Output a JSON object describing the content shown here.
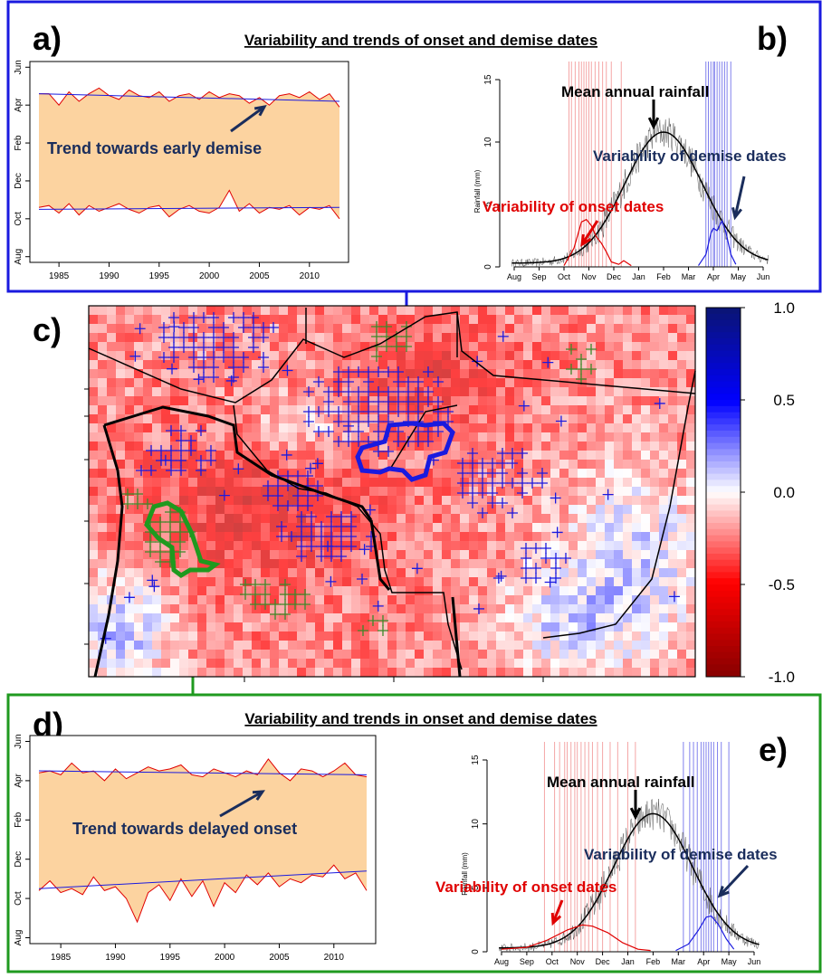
{
  "panels": {
    "a": "a)",
    "b": "b)",
    "c": "c)",
    "d": "d)",
    "e": "e)"
  },
  "top_title": "Variability and trends of onset and demise dates",
  "bottom_title": "Variability and trends in onset and demise dates",
  "annotations": {
    "trend_early_demise": "Trend towards early demise",
    "trend_delayed_onset": "Trend towards delayed onset",
    "mean_annual_rainfall": "Mean annual rainfall",
    "variability_demise": "Variability of demise dates",
    "variability_onset": "Variability of onset dates"
  },
  "colors": {
    "frame_top": "#1a1adf",
    "frame_bottom": "#1f9a1f",
    "band_fill": "#fcd3a0",
    "onset_red": "#e00000",
    "demise_blue": "#1a1adf",
    "text_navy": "#1a2d5c",
    "plus_blue": "#1a1adf",
    "plus_green": "#3a8a2a"
  },
  "chart_data": [
    {
      "id": "a",
      "type": "area",
      "x": [
        1983,
        1984,
        1985,
        1986,
        1987,
        1988,
        1989,
        1990,
        1991,
        1992,
        1993,
        1994,
        1995,
        1996,
        1997,
        1998,
        1999,
        2000,
        2001,
        2002,
        2003,
        2004,
        2005,
        2006,
        2007,
        2008,
        2009,
        2010,
        2011,
        2012,
        2013
      ],
      "x_ticks": [
        "1985",
        "1990",
        "1995",
        "2000",
        "2005",
        "2010"
      ],
      "y_ticks": [
        "Aug",
        "Oct",
        "Dec",
        "Feb",
        "Apr",
        "Jun"
      ],
      "series": [
        {
          "values": [
            8.6,
            8.6,
            8.0,
            8.7,
            8.2,
            8.6,
            8.9,
            8.5,
            8.3,
            8.8,
            8.5,
            8.4,
            8.7,
            8.2,
            8.5,
            8.6,
            8.3,
            8.7,
            8.4,
            8.6,
            8.5,
            8.1,
            8.4,
            8.0,
            8.5,
            8.6,
            8.4,
            8.7,
            8.3,
            8.6,
            7.9
          ]
        },
        {
          "values": [
            2.6,
            2.7,
            2.3,
            2.8,
            2.2,
            2.7,
            2.4,
            2.6,
            2.8,
            2.5,
            2.3,
            2.6,
            2.7,
            2.1,
            2.5,
            2.7,
            2.4,
            2.3,
            2.6,
            3.5,
            2.4,
            2.8,
            2.3,
            2.6,
            2.5,
            2.7,
            2.2,
            2.6,
            2.5,
            2.7,
            2.0
          ]
        }
      ],
      "trend_top": [
        8.6,
        8.2
      ],
      "trend_bottom": [
        2.5,
        2.6
      ]
    },
    {
      "id": "b",
      "type": "line",
      "x_ticks": [
        "Aug",
        "Sep",
        "Oct",
        "Nov",
        "Dec",
        "Jan",
        "Feb",
        "Mar",
        "Apr",
        "May",
        "Jun"
      ],
      "y_ticks": [
        "0",
        "5",
        "10",
        "15"
      ],
      "ylabel": "Rainfall (mm)",
      "ylim": [
        0,
        16
      ],
      "onset_dates": [
        2.2,
        2.3,
        2.45,
        2.6,
        2.7,
        2.8,
        2.9,
        3.0,
        3.1,
        3.25,
        3.4,
        3.55,
        3.7,
        3.9,
        4.3
      ],
      "demise_dates": [
        7.7,
        7.8,
        7.9,
        8.0,
        8.05,
        8.15,
        8.25,
        8.35,
        8.45,
        8.55,
        8.7
      ],
      "onset_density": [
        [
          2.0,
          0.1
        ],
        [
          2.4,
          1.5
        ],
        [
          2.7,
          3.6
        ],
        [
          2.9,
          3.8
        ],
        [
          3.1,
          3.3
        ],
        [
          3.3,
          2.4
        ],
        [
          3.5,
          1.9
        ],
        [
          3.7,
          1.2
        ],
        [
          3.9,
          0.4
        ],
        [
          4.2,
          0.2
        ],
        [
          4.4,
          0.5
        ],
        [
          4.7,
          0.1
        ]
      ],
      "demise_density": [
        [
          7.4,
          0.1
        ],
        [
          7.7,
          1.0
        ],
        [
          7.9,
          2.7
        ],
        [
          8.0,
          3.1
        ],
        [
          8.15,
          2.9
        ],
        [
          8.35,
          3.7
        ],
        [
          8.5,
          2.8
        ],
        [
          8.7,
          1.0
        ],
        [
          8.9,
          0.2
        ]
      ]
    },
    {
      "id": "c",
      "type": "heatmap",
      "colorbar_ticks": [
        "1.0",
        "0.5",
        "0.0",
        "-0.5",
        "-1.0"
      ],
      "vmin": -1.0,
      "vmax": 1.0
    },
    {
      "id": "d",
      "type": "area",
      "x": [
        1983,
        1984,
        1985,
        1986,
        1987,
        1988,
        1989,
        1990,
        1991,
        1992,
        1993,
        1994,
        1995,
        1996,
        1997,
        1998,
        1999,
        2000,
        2001,
        2002,
        2003,
        2004,
        2005,
        2006,
        2007,
        2008,
        2009,
        2010,
        2011,
        2012,
        2013
      ],
      "x_ticks": [
        "1985",
        "1990",
        "1995",
        "2000",
        "2005",
        "2010"
      ],
      "y_ticks": [
        "Aug",
        "Oct",
        "Dec",
        "Feb",
        "Apr",
        "Jun"
      ],
      "series": [
        {
          "values": [
            8.4,
            8.5,
            8.3,
            8.9,
            8.4,
            8.5,
            8.0,
            8.6,
            8.1,
            8.4,
            8.7,
            8.5,
            8.6,
            8.8,
            8.3,
            8.2,
            8.6,
            8.4,
            8.2,
            8.5,
            8.3,
            9.1,
            8.4,
            8.0,
            8.6,
            8.5,
            8.2,
            8.5,
            8.9,
            8.3,
            8.2
          ]
        },
        {
          "values": [
            2.4,
            2.9,
            2.3,
            2.5,
            2.2,
            3.1,
            2.4,
            2.6,
            2.0,
            0.8,
            2.3,
            2.7,
            1.9,
            3.0,
            2.1,
            2.9,
            1.6,
            2.8,
            2.3,
            3.2,
            2.7,
            3.3,
            2.6,
            3.0,
            2.8,
            3.2,
            3.1,
            3.7,
            3.0,
            3.3,
            2.4
          ]
        }
      ],
      "trend_top": [
        8.5,
        8.3
      ],
      "trend_bottom": [
        2.5,
        3.4
      ]
    },
    {
      "id": "e",
      "type": "line",
      "x_ticks": [
        "Aug",
        "Sep",
        "Oct",
        "Nov",
        "Dec",
        "Jan",
        "Feb",
        "Mar",
        "Apr",
        "May",
        "Jun"
      ],
      "y_ticks": [
        "0",
        "5",
        "10",
        "15"
      ],
      "ylabel": "Rainfall (mm)",
      "ylim": [
        0,
        16
      ],
      "onset_dates": [
        1.7,
        2.1,
        2.3,
        2.5,
        2.6,
        2.75,
        2.9,
        3.0,
        3.15,
        3.3,
        3.45,
        3.6,
        3.8,
        4.0,
        4.3,
        4.6,
        5.0,
        5.3
      ],
      "demise_dates": [
        7.2,
        7.45,
        7.6,
        7.75,
        7.9,
        8.0,
        8.1,
        8.2,
        8.3,
        8.4,
        8.55,
        8.7,
        9.0
      ],
      "onset_density": [
        [
          0.0,
          0.2
        ],
        [
          1.0,
          0.35
        ],
        [
          1.8,
          0.9
        ],
        [
          2.6,
          1.7
        ],
        [
          3.2,
          2.1
        ],
        [
          3.6,
          2.0
        ],
        [
          4.2,
          1.5
        ],
        [
          4.8,
          0.7
        ],
        [
          5.4,
          0.2
        ],
        [
          5.9,
          0.1
        ]
      ],
      "demise_density": [
        [
          6.9,
          0.1
        ],
        [
          7.4,
          0.6
        ],
        [
          7.8,
          1.7
        ],
        [
          8.1,
          2.7
        ],
        [
          8.3,
          2.8
        ],
        [
          8.6,
          2.1
        ],
        [
          8.9,
          1.0
        ],
        [
          9.2,
          0.2
        ]
      ]
    }
  ]
}
